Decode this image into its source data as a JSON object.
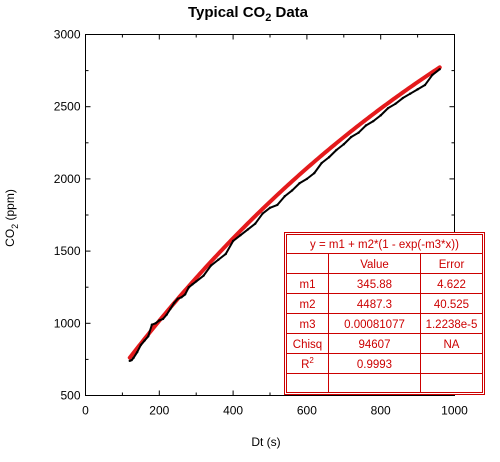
{
  "chart_data": {
    "type": "scatter",
    "title": "Typical CO",
    "title_sub": "2",
    "title_suffix": " Data",
    "xlabel": "Dt (s)",
    "ylabel_main": "CO",
    "ylabel_sub": "2",
    "ylabel_suffix": " (ppm)",
    "xlim": [
      0,
      1000
    ],
    "ylim": [
      500,
      3000
    ],
    "xticks": [
      0,
      200,
      400,
      600,
      800,
      1000
    ],
    "yticks": [
      500,
      1000,
      1500,
      2000,
      2500,
      3000
    ],
    "grid": false,
    "series": [
      {
        "color": "#000000",
        "x": [
          120,
          125,
          130,
          140,
          150,
          160,
          170,
          180,
          190,
          200,
          210,
          220,
          230,
          240,
          250,
          260,
          270,
          280,
          290,
          300,
          320,
          340,
          360,
          380,
          400,
          420,
          440,
          460,
          480,
          500,
          520,
          540,
          560,
          580,
          600,
          620,
          640,
          660,
          680,
          700,
          720,
          740,
          760,
          780,
          800,
          820,
          840,
          860,
          880,
          900,
          920,
          940,
          960
        ],
        "y": [
          740,
          745,
          760,
          800,
          850,
          880,
          910,
          990,
          1000,
          1020,
          1030,
          1060,
          1100,
          1140,
          1170,
          1180,
          1200,
          1250,
          1270,
          1290,
          1330,
          1400,
          1440,
          1480,
          1570,
          1610,
          1650,
          1690,
          1760,
          1800,
          1820,
          1880,
          1920,
          1970,
          2000,
          2040,
          2110,
          2150,
          2200,
          2240,
          2290,
          2320,
          2370,
          2400,
          2440,
          2490,
          2520,
          2560,
          2590,
          2620,
          2650,
          2720,
          2760
        ]
      }
    ],
    "fit": {
      "color": "#e41a1c",
      "m1": 345.88,
      "m2": 4487.3,
      "m3": 0.00081077,
      "x_range": [
        120,
        960
      ]
    }
  },
  "fit_table": {
    "header": "y = m1 + m2*(1 - exp(-m3*x))",
    "columns": [
      "",
      "Value",
      "Error"
    ],
    "rows": [
      {
        "name": "m1",
        "sup": "",
        "value": "345.88",
        "error": "4.622"
      },
      {
        "name": "m2",
        "sup": "",
        "value": "4487.3",
        "error": "40.525"
      },
      {
        "name": "m3",
        "sup": "",
        "value": "0.00081077",
        "error": "1.2238e-5"
      },
      {
        "name": "Chisq",
        "sup": "",
        "value": "94607",
        "error": "NA"
      },
      {
        "name": "R",
        "sup": "2",
        "value": "0.9993",
        "error": ""
      }
    ]
  }
}
